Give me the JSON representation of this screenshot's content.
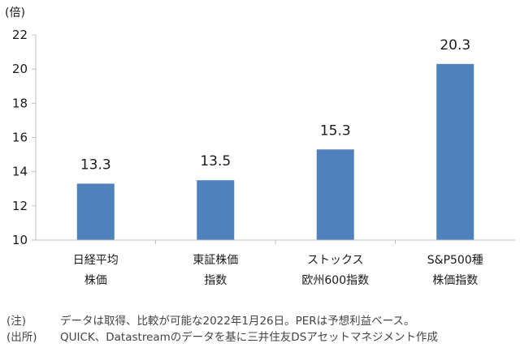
{
  "chart_data": {
    "type": "bar",
    "unit_label": "(倍)",
    "categories": [
      [
        "日経平均",
        "株価"
      ],
      [
        "東証株価",
        "指数"
      ],
      [
        "ストックス",
        "欧州600指数"
      ],
      [
        "S&P500種",
        "株価指数"
      ]
    ],
    "values": [
      13.3,
      13.5,
      15.3,
      20.3
    ],
    "data_labels": [
      "13.3",
      "13.5",
      "15.3",
      "20.3"
    ],
    "ylim": [
      10,
      22
    ],
    "yticks": [
      10,
      12,
      14,
      16,
      18,
      20,
      22
    ],
    "grid": false,
    "bar_color": "#4f81bd",
    "axis_color": "#bfbfbf"
  },
  "notes": [
    {
      "tag": "(注)",
      "text": "データは取得、比較が可能な2022年1月26日。PERは予想利益ベース。"
    },
    {
      "tag": "(出所)",
      "text": "QUICK、Datastreamのデータを基に三井住友DSアセットマネジメント作成"
    }
  ]
}
